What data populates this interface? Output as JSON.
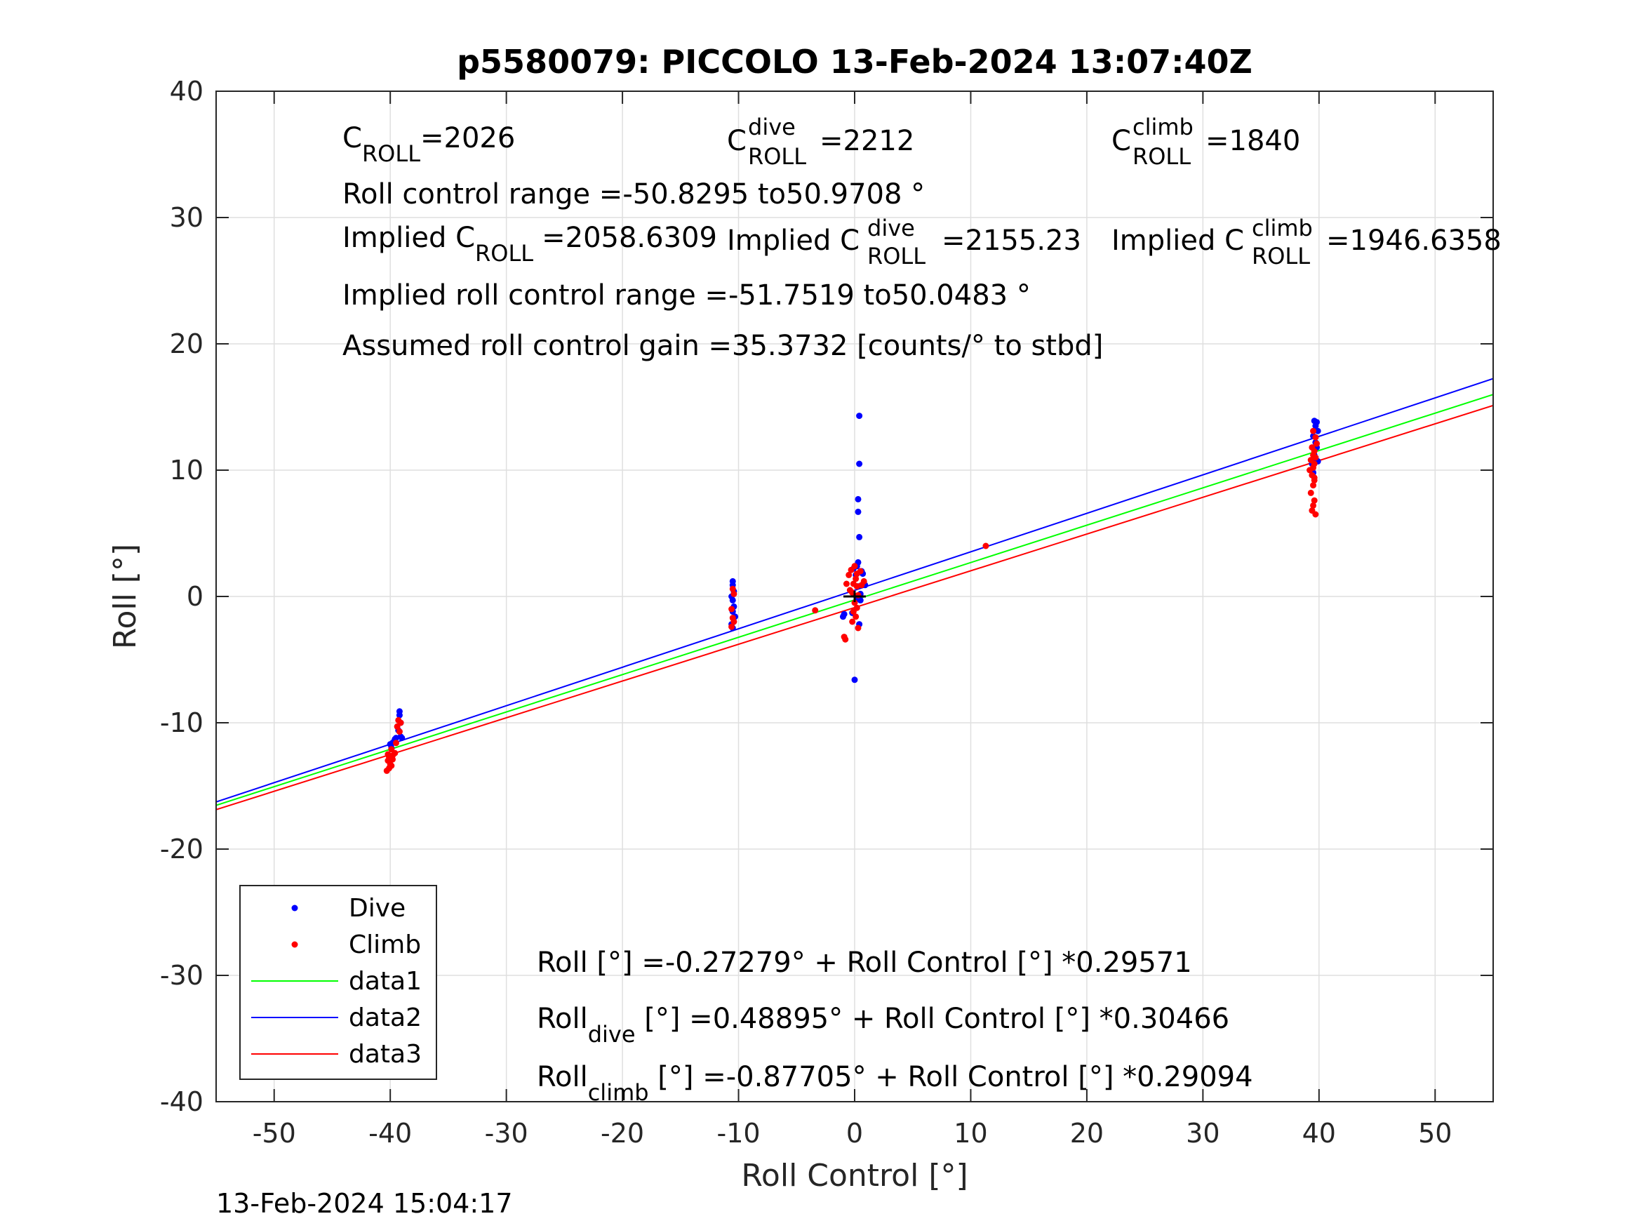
{
  "chart_data": {
    "type": "scatter",
    "title": "p5580079: PICCOLO 13-Feb-2024 13:07:40Z",
    "xlabel": "Roll Control [°]",
    "ylabel": "Roll [°]",
    "xlim": [
      -55,
      55
    ],
    "ylim": [
      -40,
      40
    ],
    "xticks": [
      "-50",
      "-40",
      "-30",
      "-20",
      "-10",
      "0",
      "10",
      "20",
      "30",
      "40",
      "50"
    ],
    "yticks": [
      "40",
      "30",
      "20",
      "10",
      "0",
      "-10",
      "-20",
      "-30",
      "-40"
    ],
    "grid": true,
    "legend_position": "bottom-left",
    "series": [
      {
        "name": "Dive",
        "kind": "points",
        "color": "#0000ff",
        "x": [
          -39.2,
          -39.2,
          -39.1,
          -39.3,
          -39.0,
          -39.6,
          -39.8,
          -40.0,
          -39.9,
          -39.7,
          -39.5,
          -39.1,
          -10.5,
          -10.5,
          -10.4,
          -10.6,
          -10.5,
          -10.4,
          -10.5,
          -10.3,
          -10.6,
          -10.5,
          0.4,
          0.4,
          0.3,
          0.3,
          0.4,
          0.2,
          -0.1,
          0.3,
          0.6,
          0.9,
          0.1,
          0.2,
          0.5,
          -0.2,
          -0.9,
          -1.0,
          0.4,
          0.0,
          0.5,
          0.3,
          0.7,
          39.6,
          39.8,
          39.7,
          39.9,
          39.5,
          39.7,
          39.8,
          39.6,
          39.9,
          39.4,
          39.7,
          39.5
        ],
        "y": [
          -9.1,
          -9.4,
          -10.0,
          -10.6,
          -11.2,
          -11.3,
          -11.6,
          -11.7,
          -12.0,
          -11.5,
          -11.2,
          -11.1,
          1.2,
          0.9,
          0.4,
          0.0,
          -0.3,
          -0.8,
          -1.2,
          -1.6,
          -2.2,
          -2.5,
          14.3,
          10.5,
          7.7,
          6.7,
          4.7,
          2.4,
          2.2,
          2.7,
          2.0,
          0.9,
          1.7,
          -0.2,
          -0.3,
          -1.3,
          -1.4,
          -1.6,
          -2.2,
          -6.6,
          0.2,
          0.8,
          1.8,
          13.9,
          13.8,
          13.5,
          13.1,
          12.7,
          12.2,
          11.8,
          11.2,
          10.7,
          10.5,
          10.9,
          9.8
        ]
      },
      {
        "name": "Climb",
        "kind": "points",
        "color": "#ff0000",
        "x": [
          -39.3,
          -39.1,
          -39.4,
          -39.2,
          -39.5,
          -39.6,
          -39.8,
          -40.1,
          -40.2,
          -40.0,
          -39.9,
          -40.1,
          -40.3,
          -39.9,
          -40.2,
          -39.8,
          -10.5,
          -10.4,
          -10.6,
          -10.5,
          -10.4,
          -10.6,
          -3.4,
          11.3,
          0.0,
          -0.3,
          0.2,
          0.1,
          -0.1,
          0.2,
          -0.4,
          -0.2,
          0.3,
          0.6,
          0.8,
          0.5,
          -0.5,
          -0.7,
          -0.9,
          -0.8,
          0.0,
          0.2,
          -0.1,
          0.1,
          -0.2,
          0.3,
          39.5,
          39.7,
          39.8,
          39.4,
          39.6,
          39.5,
          39.7,
          39.3,
          39.6,
          39.5,
          39.2,
          39.4,
          39.6,
          39.5,
          39.3,
          39.6,
          39.4,
          39.7,
          39.5,
          39.6
        ],
        "y": [
          -9.8,
          -10.0,
          -10.3,
          -10.7,
          -11.6,
          -12.4,
          -12.6,
          -12.7,
          -13.0,
          -13.3,
          -13.4,
          -13.6,
          -13.8,
          -12.1,
          -12.5,
          -12.9,
          0.6,
          0.2,
          -1.0,
          -1.7,
          -2.0,
          -2.4,
          -1.1,
          4.0,
          2.4,
          2.1,
          1.8,
          1.4,
          1.0,
          0.8,
          0.5,
          0.3,
          0.1,
          0.9,
          1.2,
          2.0,
          1.7,
          1.0,
          -3.2,
          -3.4,
          -0.5,
          -0.9,
          -1.2,
          -1.6,
          -2.0,
          -2.5,
          13.1,
          12.6,
          12.1,
          11.8,
          11.5,
          11.2,
          11.0,
          10.8,
          10.5,
          10.2,
          10.0,
          9.6,
          9.2,
          8.8,
          8.2,
          7.6,
          6.8,
          6.5,
          7.2,
          9.4
        ]
      },
      {
        "name": "data1",
        "kind": "line",
        "color": "#00ff00",
        "x": [
          -55,
          55
        ],
        "y": [
          -16.537,
          15.991
        ]
      },
      {
        "name": "data2",
        "kind": "line",
        "color": "#0000ff",
        "x": [
          -55,
          55
        ],
        "y": [
          -16.267,
          17.245
        ]
      },
      {
        "name": "data3",
        "kind": "line",
        "color": "#ff0000",
        "x": [
          -55,
          55
        ],
        "y": [
          -16.879,
          15.124
        ]
      }
    ],
    "annotations": {
      "c_roll": {
        "base": "C",
        "sub": "ROLL",
        "value": "=2026"
      },
      "c_roll_dive": {
        "base": "C",
        "sup": "dive",
        "sub": "ROLL",
        "value": "=2212"
      },
      "c_roll_climb": {
        "base": "C",
        "sup": "climb",
        "sub": "ROLL",
        "value": "=1840"
      },
      "range": "Roll control range =-50.8295 to50.9708 °",
      "implied_c": {
        "prefix": "Implied C",
        "sub": "ROLL",
        "value": "=2058.6309"
      },
      "implied_c_dive": {
        "prefix": "Implied C",
        "sup": "dive",
        "sub": "ROLL",
        "value": "=2155.23"
      },
      "implied_c_climb": {
        "prefix": "Implied C",
        "sup": "climb",
        "sub": "ROLL",
        "value": "=1946.6358"
      },
      "implied_range": "Implied roll control range =-51.7519 to50.0483 °",
      "gain": "Assumed roll control gain =35.3732 [counts/° to stbd]",
      "fit_all": "Roll [°] =-0.27279° + Roll Control [°] *0.29571",
      "fit_dive": {
        "base": "Roll",
        "sub": "dive",
        "rest": " [°] =0.48895° + Roll Control [°] *0.30466"
      },
      "fit_climb": {
        "base": "Roll",
        "sub": "climb",
        "rest": " [°] =-0.87705° + Roll Control [°] *0.29094"
      }
    }
  },
  "timestamp": "13-Feb-2024 15:04:17"
}
